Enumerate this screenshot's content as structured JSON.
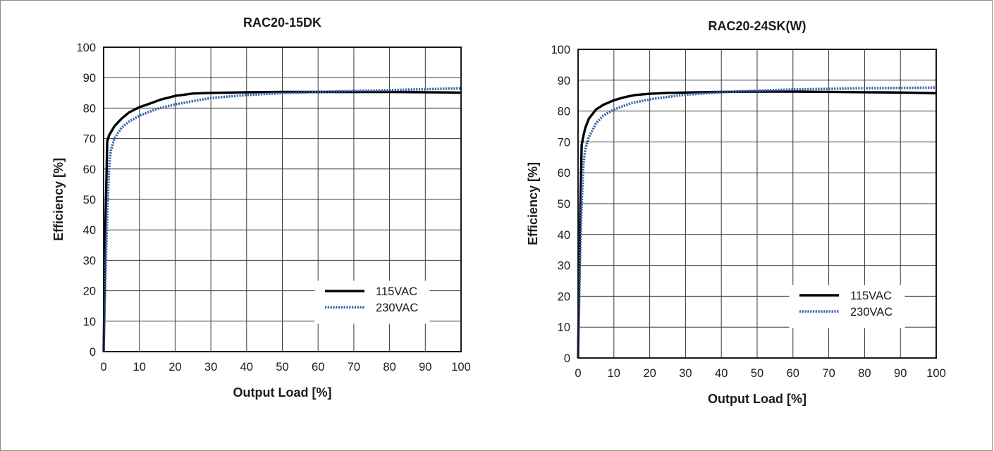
{
  "chart_data": [
    {
      "type": "line",
      "title": "RAC20-15DK",
      "xlabel": "Output Load [%]",
      "ylabel": "Efficiency [%]",
      "xlim": [
        0,
        100
      ],
      "ylim": [
        0,
        100
      ],
      "xticks": [
        0,
        10,
        20,
        30,
        40,
        50,
        60,
        70,
        80,
        90,
        100
      ],
      "yticks": [
        0,
        10,
        20,
        30,
        40,
        50,
        60,
        70,
        80,
        90,
        100
      ],
      "grid": true,
      "legend": "bottom-right",
      "series": [
        {
          "name": "115VAC",
          "color": "#000000",
          "style": "solid",
          "x": [
            0,
            0.5,
            1,
            1.5,
            2,
            3,
            5,
            7,
            10,
            13,
            16,
            20,
            25,
            30,
            40,
            50,
            60,
            70,
            80,
            90,
            100
          ],
          "y": [
            0,
            40,
            69,
            71,
            72,
            74,
            76.5,
            78.5,
            80.3,
            81.5,
            82.8,
            84,
            84.8,
            85,
            85.2,
            85.3,
            85.3,
            85.3,
            85.3,
            85.2,
            85.1
          ]
        },
        {
          "name": "230VAC",
          "color": "#3a64ad",
          "style": "dotted",
          "x": [
            0,
            0.5,
            1,
            1.5,
            2,
            3,
            5,
            7,
            10,
            15,
            20,
            25,
            30,
            40,
            50,
            60,
            70,
            80,
            90,
            100
          ],
          "y": [
            0,
            25,
            45,
            60,
            66,
            70,
            73.5,
            75.5,
            77.5,
            79.8,
            81.2,
            82.3,
            83.3,
            84.3,
            84.9,
            85.3,
            85.6,
            85.9,
            86.2,
            86.5
          ]
        }
      ]
    },
    {
      "type": "line",
      "title": "RAC20-24SK(W)",
      "xlabel": "Output Load [%]",
      "ylabel": "Efficiency [%]",
      "xlim": [
        0,
        100
      ],
      "ylim": [
        0,
        100
      ],
      "xticks": [
        0,
        10,
        20,
        30,
        40,
        50,
        60,
        70,
        80,
        90,
        100
      ],
      "yticks": [
        0,
        10,
        20,
        30,
        40,
        50,
        60,
        70,
        80,
        90,
        100
      ],
      "grid": true,
      "legend": "bottom-right",
      "series": [
        {
          "name": "115VAC",
          "color": "#000000",
          "style": "solid",
          "x": [
            0,
            0.5,
            1,
            1.5,
            2,
            3,
            5,
            7,
            10,
            13,
            16,
            20,
            25,
            30,
            40,
            50,
            60,
            70,
            80,
            90,
            100
          ],
          "y": [
            0,
            40,
            69,
            72,
            74.5,
            77.5,
            80.5,
            82,
            83.5,
            84.5,
            85.2,
            85.6,
            85.9,
            86,
            86.2,
            86.3,
            86.3,
            86.2,
            86.1,
            86,
            85.8
          ]
        },
        {
          "name": "230VAC",
          "color": "#3a64ad",
          "style": "dotted",
          "x": [
            0,
            0.5,
            1,
            1.5,
            2,
            3,
            5,
            7,
            10,
            15,
            20,
            25,
            30,
            40,
            50,
            60,
            70,
            80,
            90,
            100
          ],
          "y": [
            0,
            30,
            50,
            63,
            67.5,
            71.5,
            76,
            78.5,
            80.5,
            82.6,
            83.8,
            84.6,
            85.3,
            86.1,
            86.6,
            87,
            87.2,
            87.4,
            87.5,
            87.6
          ]
        }
      ]
    }
  ]
}
